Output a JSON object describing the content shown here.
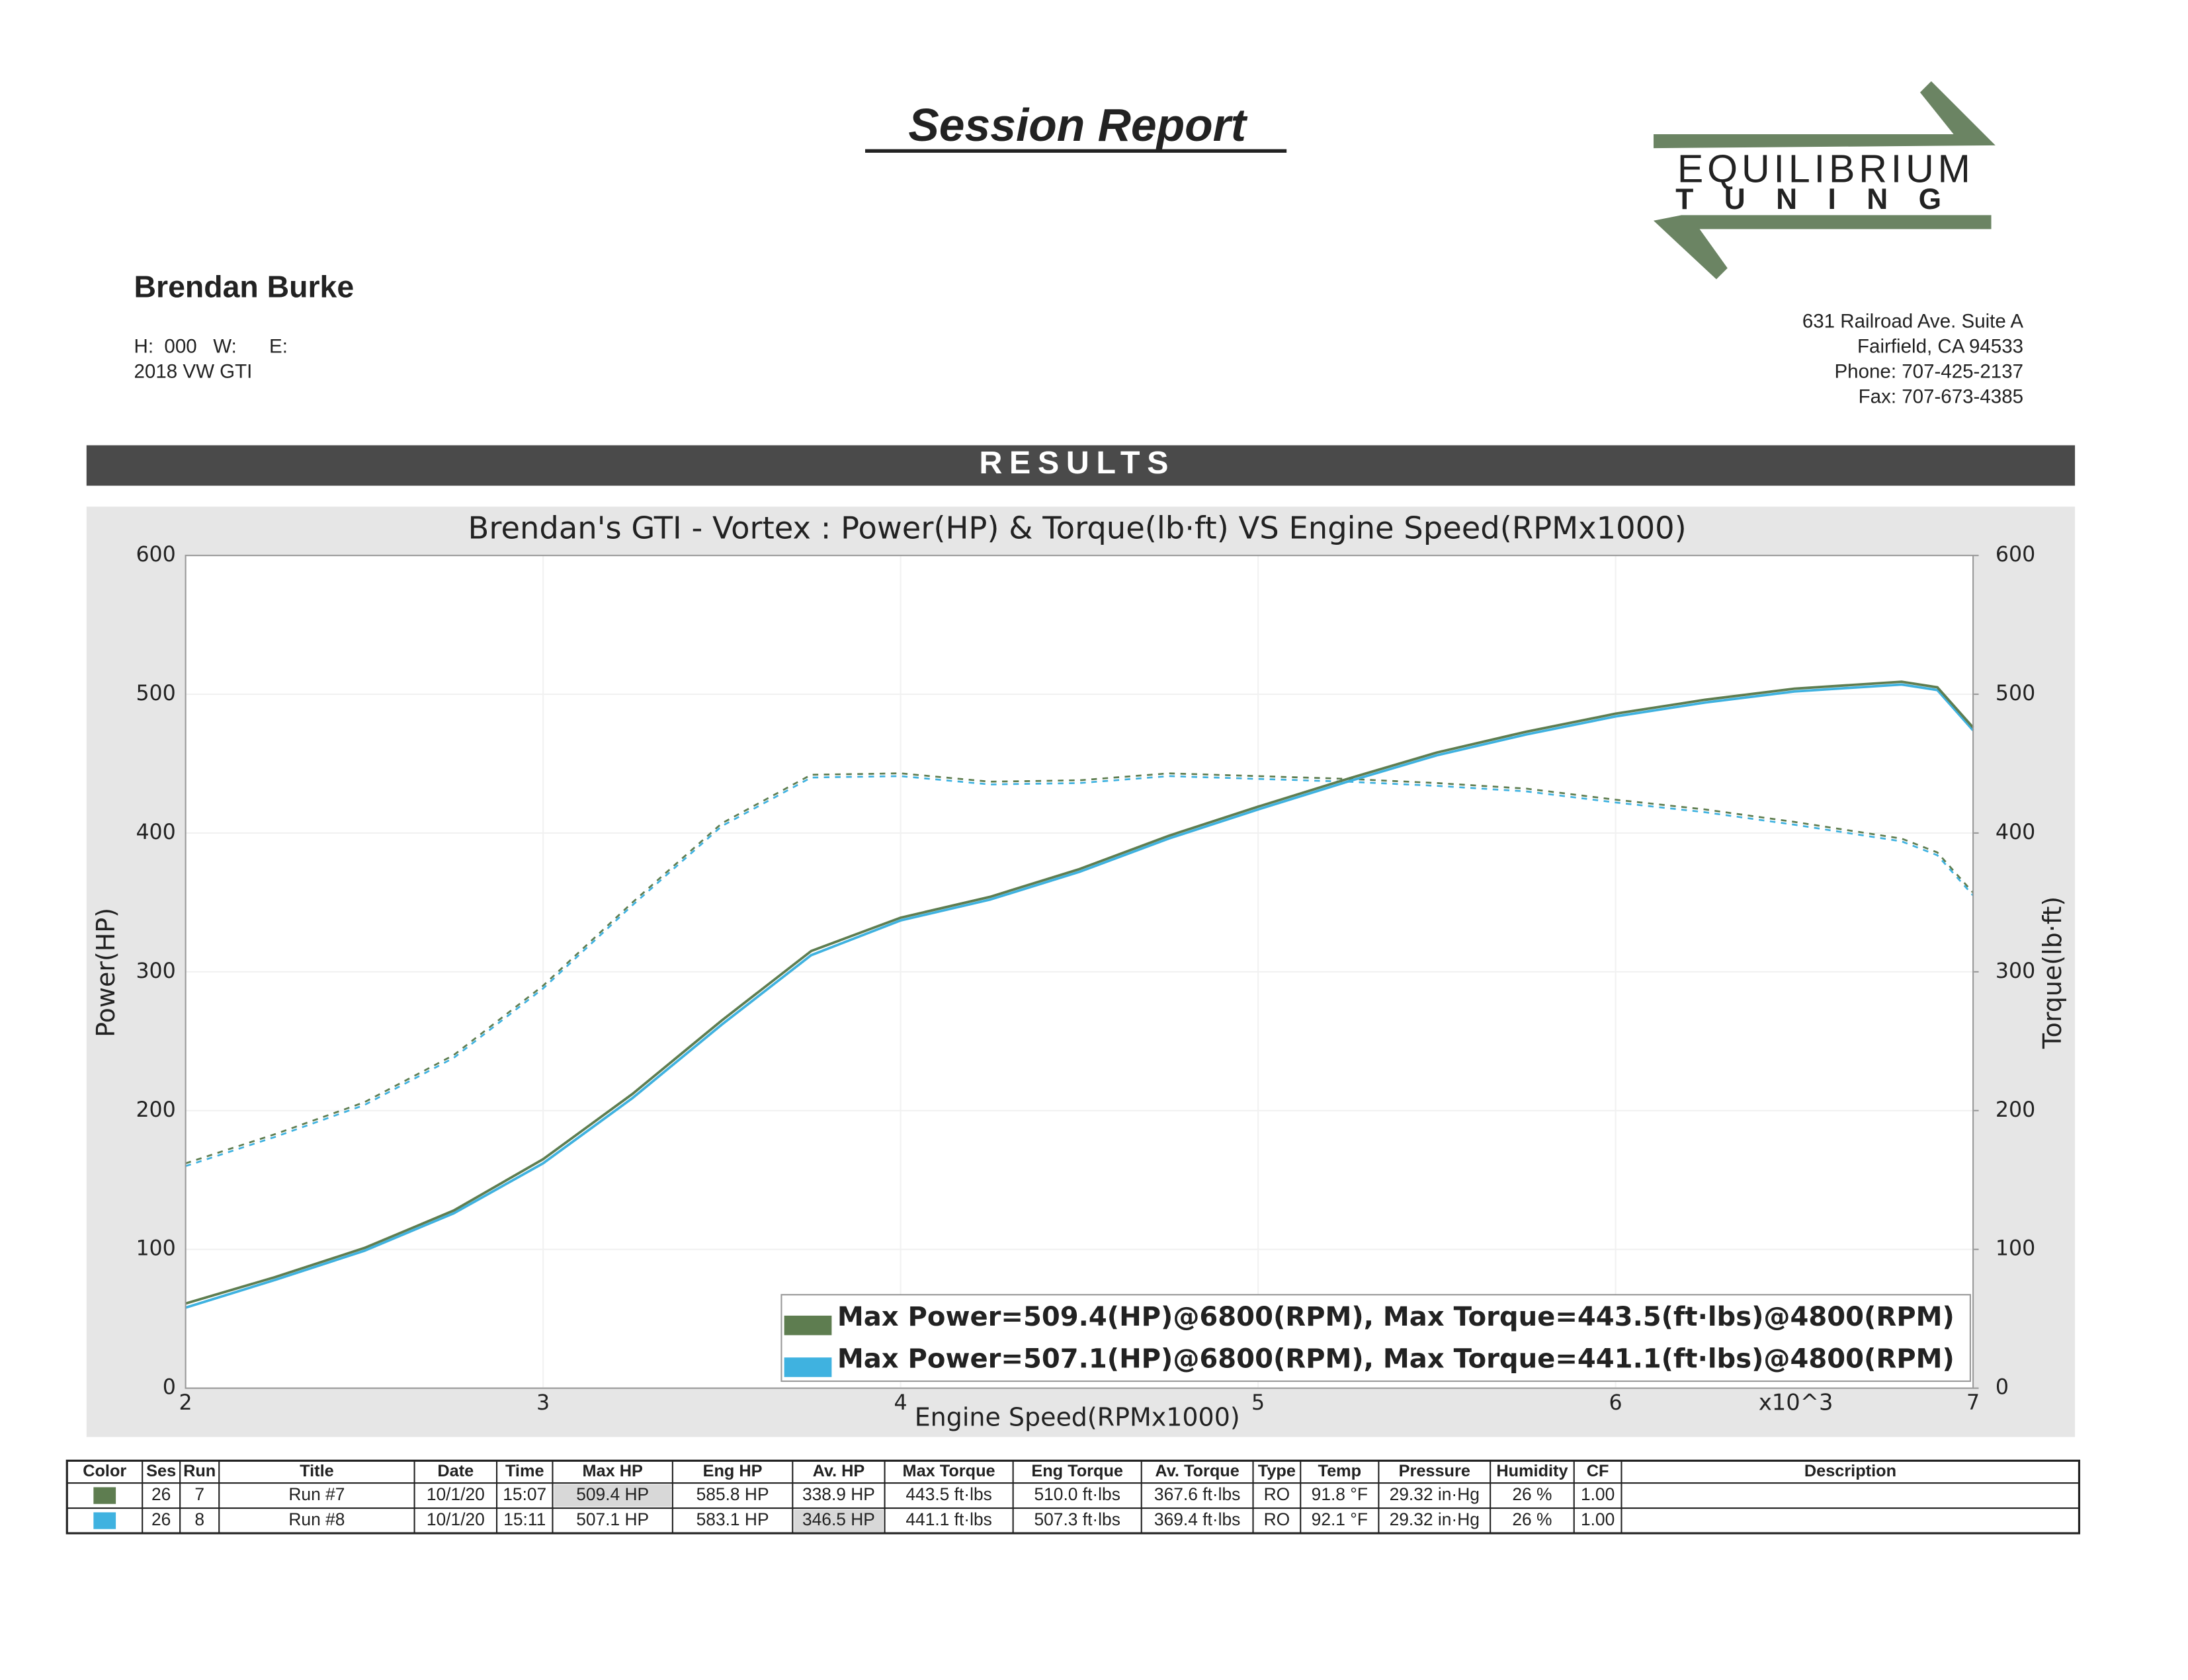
{
  "header": {
    "title": "Session Report",
    "logo_top": "EQUILIBRIUM",
    "logo_bottom": "TUNING",
    "customer": "Brendan Burke",
    "contact": "H:  000   W:      E:",
    "vehicle": "2018 VW GTI",
    "address": [
      "631 Railroad Ave. Suite A",
      "Fairfield, CA 94533",
      "Phone: 707-425-2137",
      "Fax:    707-673-4385"
    ],
    "banner": "RESULTS"
  },
  "chart_data": {
    "type": "line",
    "title": "Brendan's GTI - Vortex : Power(HP) & Torque(lb·ft) VS Engine Speed(RPMx1000)",
    "x_label": "Engine Speed(RPMx1000)",
    "x_multiplier": "x10^3",
    "y_label": "Power(HP)",
    "y2_label": "Torque(lb·ft)",
    "x": [
      2,
      2.25,
      2.5,
      2.75,
      3,
      3.25,
      3.5,
      3.75,
      4,
      4.25,
      4.5,
      4.75,
      5,
      5.25,
      5.5,
      5.75,
      6,
      6.25,
      6.5,
      6.8,
      6.9,
      7
    ],
    "xlim": [
      2,
      7
    ],
    "xticks": [
      2,
      3,
      4,
      5,
      6,
      7
    ],
    "ylim": [
      0,
      600
    ],
    "yticks": [
      0,
      100,
      200,
      300,
      400,
      500,
      600
    ],
    "y2lim": [
      0,
      600
    ],
    "y2ticks": [
      0,
      100,
      200,
      300,
      400,
      500,
      600
    ],
    "grid": true,
    "series": [
      {
        "name": "Max Power=509.4(HP)@6800(RPM), Max Torque=443.5(ft·lbs)@4800(RPM)",
        "color": "#5e7d50",
        "values": [
          61,
          80,
          101,
          128,
          165,
          212,
          265,
          315,
          339,
          354,
          374,
          398,
          419,
          439,
          458,
          473,
          486,
          496,
          504,
          509,
          505,
          476
        ]
      },
      {
        "name": "Max Power=507.1(HP)@6800(RPM), Max Torque=441.1(ft·lbs)@4800(RPM)",
        "color": "#3fb2e0",
        "values": [
          58,
          78,
          99,
          126,
          162,
          209,
          262,
          312,
          337,
          352,
          372,
          396,
          417,
          437,
          456,
          471,
          484,
          494,
          502,
          507,
          503,
          474
        ]
      },
      {
        "color": "#5e7d50",
        "axis": "y2",
        "dash": true,
        "values": [
          162,
          183,
          206,
          240,
          290,
          350,
          407,
          442,
          443,
          437,
          438,
          443,
          441,
          439,
          436,
          432,
          424,
          417,
          408,
          396,
          386,
          357
        ]
      },
      {
        "color": "#3fb2e0",
        "axis": "y2",
        "dash": true,
        "values": [
          160,
          181,
          204,
          238,
          288,
          348,
          405,
          440,
          441,
          435,
          436,
          441,
          439,
          437,
          434,
          430,
          422,
          415,
          406,
          394,
          384,
          355
        ]
      }
    ]
  },
  "table": {
    "headers": [
      "Color",
      "Ses",
      "Run",
      "Title",
      "Date",
      "Time",
      "Max HP",
      "Eng HP",
      "Av. HP",
      "Max Torque",
      "Eng Torque",
      "Av. Torque",
      "Type",
      "Temp",
      "Pressure",
      "Humidity",
      "CF",
      "Description"
    ],
    "rows": [
      {
        "color": "#5e7d50",
        "cells": [
          "26",
          "7",
          "Run #7",
          "10/1/20",
          "15:07",
          "509.4 HP",
          "585.8 HP",
          "338.9 HP",
          "443.5 ft·lbs",
          "510.0 ft·lbs",
          "367.6 ft·lbs",
          "RO",
          "91.8 °F",
          "29.32 in·Hg",
          "26 %",
          "1.00"
        ]
      },
      {
        "color": "#3fb2e0",
        "cells": [
          "26",
          "8",
          "Run #8",
          "10/1/20",
          "15:11",
          "507.1 HP",
          "583.1 HP",
          "346.5 HP",
          "441.1 ft·lbs",
          "507.3 ft·lbs",
          "369.4 ft·lbs",
          "RO",
          "92.1 °F",
          "29.32 in·Hg",
          "26 %",
          "1.00"
        ]
      }
    ]
  }
}
